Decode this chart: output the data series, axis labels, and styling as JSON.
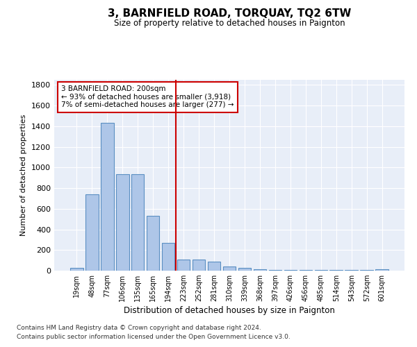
{
  "title": "3, BARNFIELD ROAD, TORQUAY, TQ2 6TW",
  "subtitle": "Size of property relative to detached houses in Paignton",
  "xlabel": "Distribution of detached houses by size in Paignton",
  "ylabel": "Number of detached properties",
  "bar_labels": [
    "19sqm",
    "48sqm",
    "77sqm",
    "106sqm",
    "135sqm",
    "165sqm",
    "194sqm",
    "223sqm",
    "252sqm",
    "281sqm",
    "310sqm",
    "339sqm",
    "368sqm",
    "397sqm",
    "426sqm",
    "456sqm",
    "485sqm",
    "514sqm",
    "543sqm",
    "572sqm",
    "601sqm"
  ],
  "bar_values": [
    25,
    740,
    1430,
    935,
    935,
    530,
    270,
    110,
    110,
    90,
    40,
    25,
    15,
    10,
    5,
    5,
    5,
    5,
    5,
    5,
    15
  ],
  "bar_color": "#aec6e8",
  "bar_edge_color": "#5a8fc2",
  "vline_x_index": 6.5,
  "vline_color": "#cc0000",
  "annotation_text": "3 BARNFIELD ROAD: 200sqm\n← 93% of detached houses are smaller (3,918)\n7% of semi-detached houses are larger (277) →",
  "annotation_box_color": "#ffffff",
  "annotation_box_edge": "#cc0000",
  "ylim": [
    0,
    1850
  ],
  "yticks": [
    0,
    200,
    400,
    600,
    800,
    1000,
    1200,
    1400,
    1600,
    1800
  ],
  "plot_bg_color": "#e8eef8",
  "footer_line1": "Contains HM Land Registry data © Crown copyright and database right 2024.",
  "footer_line2": "Contains public sector information licensed under the Open Government Licence v3.0."
}
